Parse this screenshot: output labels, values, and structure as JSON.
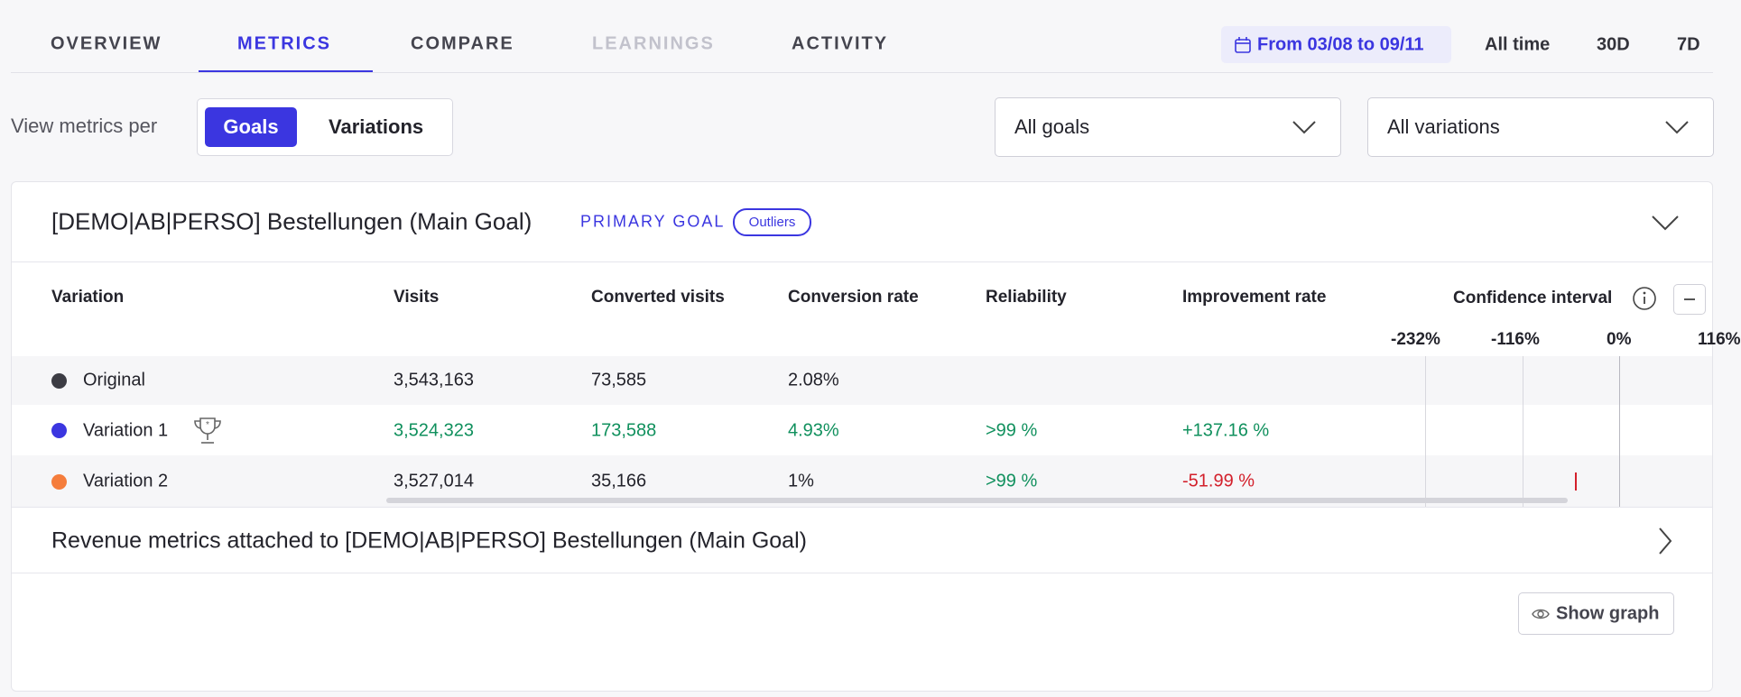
{
  "tabs": [
    "OVERVIEW",
    "METRICS",
    "COMPARE",
    "LEARNINGS",
    "ACTIVITY"
  ],
  "date_range": "From 03/08 to 09/11",
  "time_ranges": [
    "All time",
    "30D",
    "7D"
  ],
  "view_label": "View metrics per",
  "toggle": [
    "Goals",
    "Variations"
  ],
  "dropdowns": [
    "All goals",
    "All variations"
  ],
  "goal": {
    "title": "[DEMO|AB|PERSO] Bestellungen (Main Goal)",
    "badge": "PRIMARY GOAL",
    "pill": "Outliers"
  },
  "table": {
    "headers": [
      "Variation",
      "Visits",
      "Converted visits",
      "Conversion rate",
      "Reliability",
      "Improvement rate",
      "Confidence interval"
    ],
    "ci_ticks": [
      "-232%",
      "-116%",
      "0%",
      "116%"
    ],
    "rows": [
      [
        "Original",
        "3,543,163",
        "73,585",
        "2.08%"
      ],
      [
        "Variation 1",
        "3,524,323",
        "173,588",
        "4.93%",
        ">99 %",
        "+137.16 %"
      ],
      [
        "Variation 2",
        "3,527,014",
        "35,166",
        "1%",
        ">99 %",
        "-51.99 %"
      ]
    ]
  },
  "revenue_title": "Revenue metrics attached to [DEMO|AB|PERSO] Bestellungen (Main Goal)",
  "show_graph": "Show graph"
}
